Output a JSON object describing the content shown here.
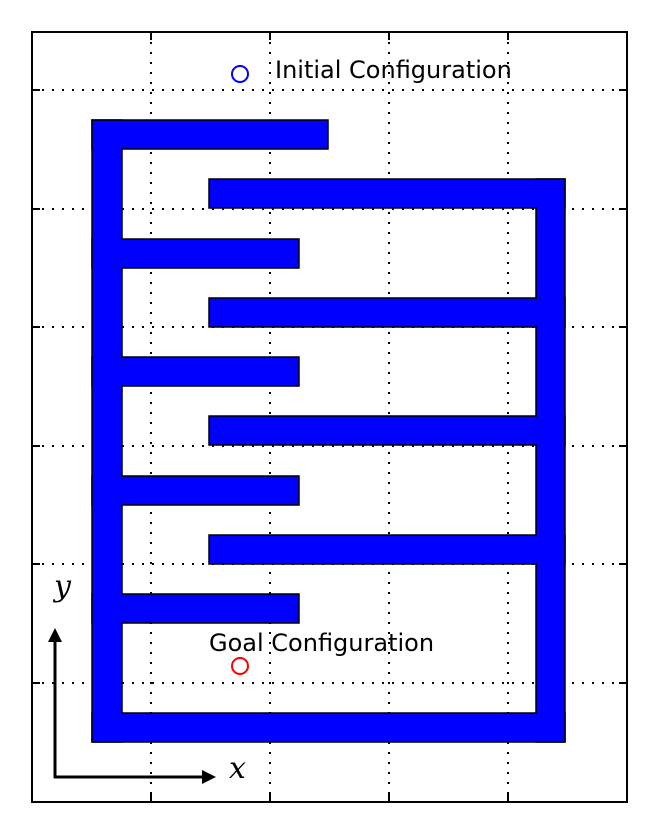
{
  "labels": {
    "initial": "Initial Configuration",
    "goal": "Goal Configuration",
    "axis_x": "x",
    "axis_y": "y"
  },
  "colors": {
    "obstacle": "#0000ff",
    "initial_marker": "#0000ff",
    "goal_marker": "#ff0000",
    "grid": "#000000"
  },
  "icons": {
    "initial_marker": "circle-outline",
    "goal_marker": "circle-outline",
    "axis_arrows": "arrow"
  }
}
